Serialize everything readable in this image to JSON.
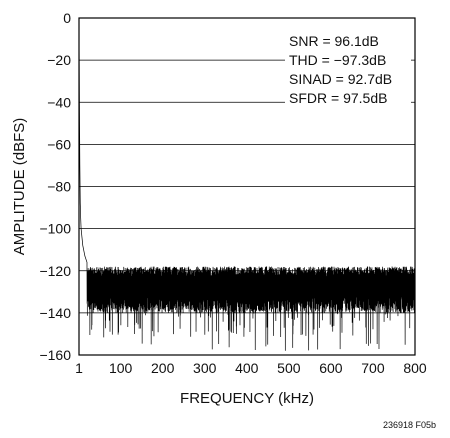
{
  "chart_data": {
    "type": "line",
    "title": "",
    "xlabel": "FREQUENCY (kHz)",
    "ylabel": "AMPLITUDE (dBFS)",
    "xlim": [
      1,
      800
    ],
    "ylim": [
      -160,
      0
    ],
    "x_ticks": [
      1,
      100,
      200,
      300,
      400,
      500,
      600,
      700,
      800
    ],
    "y_ticks": [
      0,
      -20,
      -40,
      -60,
      -80,
      -100,
      -120,
      -140,
      -160
    ],
    "y_tick_labels": [
      "0",
      "−20",
      "−40",
      "−60",
      "−80",
      "−100",
      "−120",
      "−140",
      "−160"
    ],
    "grid": "horizontal",
    "series": [
      {
        "color": "#000000",
        "fundamental": {
          "x": 1,
          "y": 0
        },
        "noise_floor": {
          "upper": -118,
          "lower": -140,
          "deep_spur_min": -158
        },
        "points": [
          {
            "x": 1,
            "y": 0
          },
          {
            "x": 2,
            "y": -40
          },
          {
            "x": 3,
            "y": -70
          },
          {
            "x": 4,
            "y": -88
          },
          {
            "x": 5,
            "y": -95
          },
          {
            "x": 6,
            "y": -100
          },
          {
            "x": 8,
            "y": -104
          },
          {
            "x": 10,
            "y": -108
          },
          {
            "x": 15,
            "y": -113
          },
          {
            "x": 20,
            "y": -116
          }
        ]
      }
    ],
    "annotations": [
      "SNR = 96.1dB",
      "THD = −97.3dB",
      "SINAD = 92.7dB",
      "SFDR = 97.5dB"
    ]
  },
  "figure_id": "236918 F05b"
}
